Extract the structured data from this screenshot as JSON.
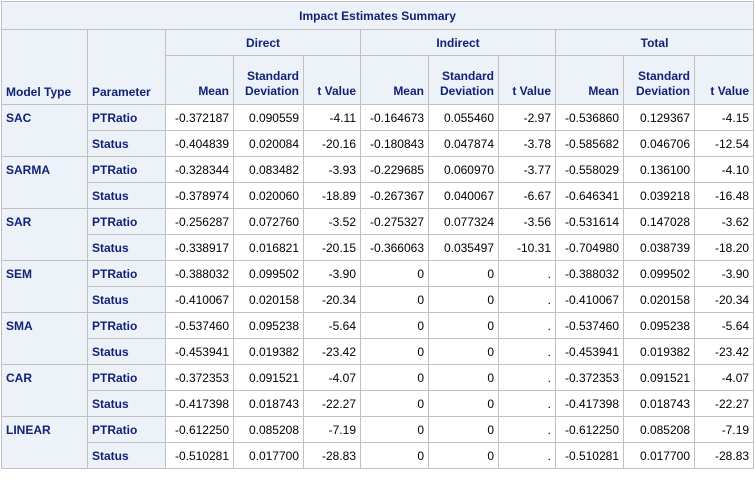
{
  "title": "Impact Estimates Summary",
  "row_headers": [
    "Model Type",
    "Parameter"
  ],
  "groups": [
    {
      "name": "Direct",
      "columns": [
        "Mean",
        "Standard Deviation",
        "t Value"
      ]
    },
    {
      "name": "Indirect",
      "columns": [
        "Mean",
        "Standard Deviation",
        "t Value"
      ]
    },
    {
      "name": "Total",
      "columns": [
        "Mean",
        "Standard Deviation",
        "t Value"
      ]
    }
  ],
  "models": [
    {
      "name": "SAC",
      "rows": [
        {
          "parameter": "PTRatio",
          "values": [
            "-0.372187",
            "0.090559",
            "-4.11",
            "-0.164673",
            "0.055460",
            "-2.97",
            "-0.536860",
            "0.129367",
            "-4.15"
          ]
        },
        {
          "parameter": "Status",
          "values": [
            "-0.404839",
            "0.020084",
            "-20.16",
            "-0.180843",
            "0.047874",
            "-3.78",
            "-0.585682",
            "0.046706",
            "-12.54"
          ]
        }
      ]
    },
    {
      "name": "SARMA",
      "rows": [
        {
          "parameter": "PTRatio",
          "values": [
            "-0.328344",
            "0.083482",
            "-3.93",
            "-0.229685",
            "0.060970",
            "-3.77",
            "-0.558029",
            "0.136100",
            "-4.10"
          ]
        },
        {
          "parameter": "Status",
          "values": [
            "-0.378974",
            "0.020060",
            "-18.89",
            "-0.267367",
            "0.040067",
            "-6.67",
            "-0.646341",
            "0.039218",
            "-16.48"
          ]
        }
      ]
    },
    {
      "name": "SAR",
      "rows": [
        {
          "parameter": "PTRatio",
          "values": [
            "-0.256287",
            "0.072760",
            "-3.52",
            "-0.275327",
            "0.077324",
            "-3.56",
            "-0.531614",
            "0.147028",
            "-3.62"
          ]
        },
        {
          "parameter": "Status",
          "values": [
            "-0.338917",
            "0.016821",
            "-20.15",
            "-0.366063",
            "0.035497",
            "-10.31",
            "-0.704980",
            "0.038739",
            "-18.20"
          ]
        }
      ]
    },
    {
      "name": "SEM",
      "rows": [
        {
          "parameter": "PTRatio",
          "values": [
            "-0.388032",
            "0.099502",
            "-3.90",
            "0",
            "0",
            ".",
            "-0.388032",
            "0.099502",
            "-3.90"
          ]
        },
        {
          "parameter": "Status",
          "values": [
            "-0.410067",
            "0.020158",
            "-20.34",
            "0",
            "0",
            ".",
            "-0.410067",
            "0.020158",
            "-20.34"
          ]
        }
      ]
    },
    {
      "name": "SMA",
      "rows": [
        {
          "parameter": "PTRatio",
          "values": [
            "-0.537460",
            "0.095238",
            "-5.64",
            "0",
            "0",
            ".",
            "-0.537460",
            "0.095238",
            "-5.64"
          ]
        },
        {
          "parameter": "Status",
          "values": [
            "-0.453941",
            "0.019382",
            "-23.42",
            "0",
            "0",
            ".",
            "-0.453941",
            "0.019382",
            "-23.42"
          ]
        }
      ]
    },
    {
      "name": "CAR",
      "rows": [
        {
          "parameter": "PTRatio",
          "values": [
            "-0.372353",
            "0.091521",
            "-4.07",
            "0",
            "0",
            ".",
            "-0.372353",
            "0.091521",
            "-4.07"
          ]
        },
        {
          "parameter": "Status",
          "values": [
            "-0.417398",
            "0.018743",
            "-22.27",
            "0",
            "0",
            ".",
            "-0.417398",
            "0.018743",
            "-22.27"
          ]
        }
      ]
    },
    {
      "name": "LINEAR",
      "rows": [
        {
          "parameter": "PTRatio",
          "values": [
            "-0.612250",
            "0.085208",
            "-7.19",
            "0",
            "0",
            ".",
            "-0.612250",
            "0.085208",
            "-7.19"
          ]
        },
        {
          "parameter": "Status",
          "values": [
            "-0.510281",
            "0.017700",
            "-28.83",
            "0",
            "0",
            ".",
            "-0.510281",
            "0.017700",
            "-28.83"
          ]
        }
      ]
    }
  ]
}
